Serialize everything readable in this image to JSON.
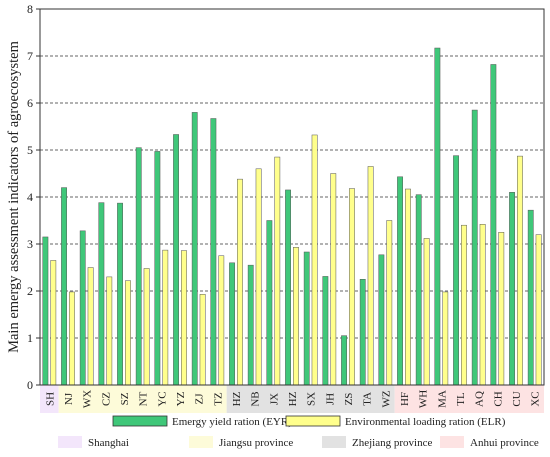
{
  "chart_data": {
    "type": "bar",
    "ylabel": "Main emergy assessment indicators of agroecosystem",
    "xlabel": "",
    "ylim": [
      0,
      8
    ],
    "yticks": [
      0,
      1,
      2,
      3,
      4,
      5,
      6,
      7,
      8
    ],
    "grid": "horizontal-dashed",
    "categories": [
      "SH",
      "NJ",
      "WX",
      "CZ",
      "SZ",
      "NT",
      "YC",
      "YZ",
      "ZJ",
      "TZ",
      "HZ",
      "NB",
      "JX",
      "HZ",
      "SX",
      "JH",
      "ZS",
      "TA",
      "WZ",
      "HF",
      "WH",
      "MA",
      "TL",
      "AQ",
      "CH",
      "CU",
      "XC"
    ],
    "series": [
      {
        "name": "Emergy yield ration (EYR)",
        "color": "#3fc779",
        "values": [
          3.15,
          4.2,
          3.28,
          3.88,
          3.87,
          5.05,
          4.97,
          5.33,
          5.8,
          5.67,
          2.6,
          2.55,
          3.5,
          4.15,
          2.83,
          2.31,
          1.05,
          2.25,
          2.77,
          4.43,
          4.05,
          7.17,
          4.88,
          5.85,
          6.82,
          4.1,
          3.72
        ]
      },
      {
        "name": "Environmental loading ration (ELR)",
        "color": "#ffff8c",
        "values": [
          2.65,
          1.98,
          2.5,
          2.3,
          2.22,
          2.48,
          2.87,
          2.86,
          1.93,
          2.75,
          4.38,
          4.6,
          4.85,
          2.93,
          5.32,
          4.5,
          4.18,
          4.65,
          3.5,
          4.17,
          3.12,
          1.98,
          3.4,
          3.42,
          3.25,
          4.87,
          3.2
        ]
      }
    ],
    "groups": [
      {
        "name": "Shanghai",
        "color": "#f3e6fb",
        "start": 0,
        "end": 0
      },
      {
        "name": "Jiangsu province",
        "color": "#fdfbd9",
        "start": 1,
        "end": 9
      },
      {
        "name": "Zhejiang province",
        "color": "#e2e2e2",
        "start": 10,
        "end": 18
      },
      {
        "name": "Anhui province",
        "color": "#fde3e3",
        "start": 19,
        "end": 26
      }
    ],
    "legend_placement": "bottom"
  }
}
